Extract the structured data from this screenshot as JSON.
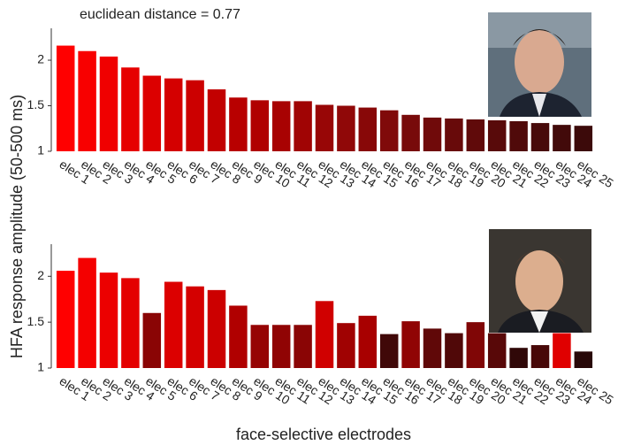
{
  "chart_data": [
    {
      "type": "bar",
      "annotation": "euclidean distance = 0.77",
      "ylabel": "HFA response amplitude (50-500 ms)",
      "categories": [
        "elec 1",
        "elec 2",
        "elec 3",
        "elec 4",
        "elec 5",
        "elec 6",
        "elec 7",
        "elec 8",
        "elec 9",
        "elec 10",
        "elec 11",
        "elec 12",
        "elec 13",
        "elec 14",
        "elec 15",
        "elec 16",
        "elec 17",
        "elec 18",
        "elec 19",
        "elec 20",
        "elec 21",
        "elec 22",
        "elec 23",
        "elec 24",
        "elec 25"
      ],
      "values": [
        2.16,
        2.1,
        2.04,
        1.92,
        1.83,
        1.8,
        1.78,
        1.68,
        1.59,
        1.56,
        1.55,
        1.55,
        1.51,
        1.5,
        1.48,
        1.45,
        1.4,
        1.37,
        1.36,
        1.35,
        1.34,
        1.33,
        1.31,
        1.29,
        1.28
      ],
      "colors": [
        "#ff0000",
        "#f80000",
        "#f00000",
        "#e60000",
        "#dc0000",
        "#d40000",
        "#cc0000",
        "#c20000",
        "#b80000",
        "#b00000",
        "#a80202",
        "#a00404",
        "#980606",
        "#900808",
        "#880808",
        "#800a0a",
        "#780a0a",
        "#700a0a",
        "#680a0a",
        "#600a0a",
        "#580a0a",
        "#500a0a",
        "#480a0a",
        "#420a0a",
        "#3c0a0a"
      ],
      "ylim": [
        1,
        2.35
      ],
      "yticks": [
        1,
        1.5,
        2
      ]
    },
    {
      "type": "bar",
      "xlabel": "face-selective electrodes",
      "categories": [
        "elec 1",
        "elec 2",
        "elec 3",
        "elec 4",
        "elec 5",
        "elec 6",
        "elec 7",
        "elec 8",
        "elec 9",
        "elec 10",
        "elec 11",
        "elec 12",
        "elec 13",
        "elec 14",
        "elec 15",
        "elec 16",
        "elec 17",
        "elec 18",
        "elec 19",
        "elec 20",
        "elec 21",
        "elec 22",
        "elec 23",
        "elec 24",
        "elec 25"
      ],
      "values": [
        2.06,
        2.2,
        2.04,
        1.98,
        1.6,
        1.94,
        1.89,
        1.85,
        1.68,
        1.47,
        1.47,
        1.47,
        1.73,
        1.49,
        1.57,
        1.37,
        1.51,
        1.43,
        1.38,
        1.5,
        1.38,
        1.22,
        1.25,
        1.38,
        1.18
      ],
      "colors": [
        "#ff0000",
        "#f40000",
        "#ec0000",
        "#e40000",
        "#8a0505",
        "#dc0000",
        "#d40000",
        "#cc0000",
        "#b00000",
        "#960404",
        "#900404",
        "#8a0505",
        "#d00000",
        "#a00202",
        "#a80000",
        "#400808",
        "#900404",
        "#600808",
        "#500808",
        "#800606",
        "#580808",
        "#300808",
        "#480808",
        "#e00000",
        "#280808"
      ],
      "ylim": [
        1,
        2.35
      ],
      "yticks": [
        1,
        1.5,
        2
      ]
    }
  ]
}
